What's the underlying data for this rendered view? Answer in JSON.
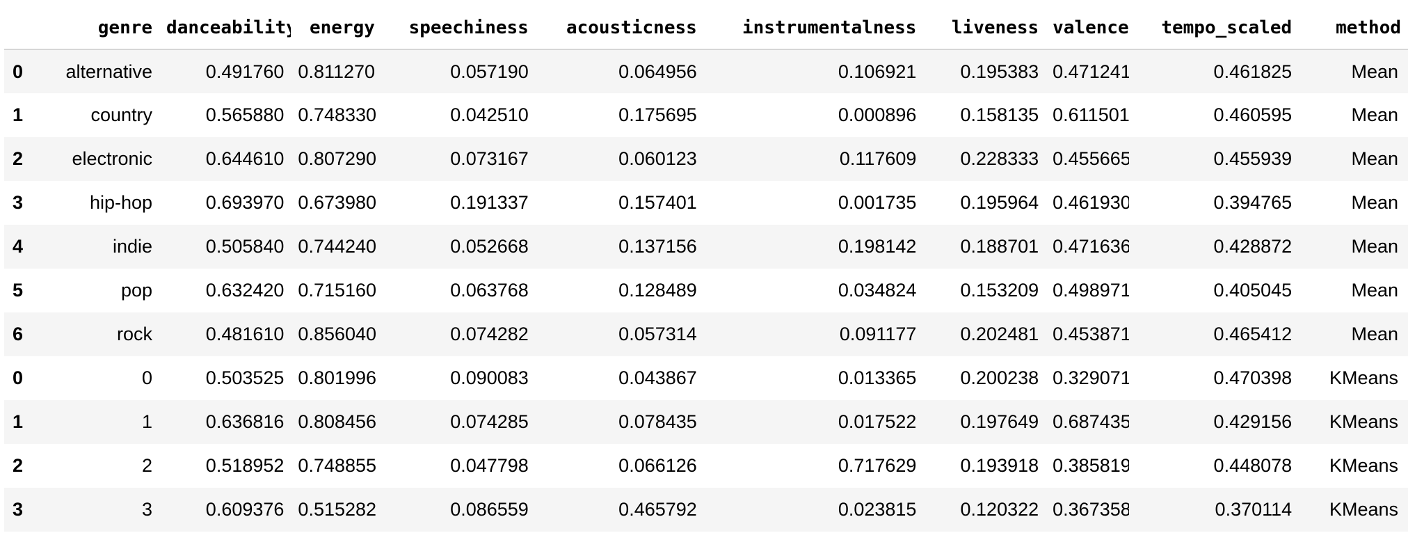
{
  "table": {
    "index_header": "",
    "columns": [
      "genre",
      "danceability",
      "energy",
      "speechiness",
      "acousticness",
      "instrumentalness",
      "liveness",
      "valence",
      "tempo_scaled",
      "method"
    ],
    "rows": [
      {
        "index": "0",
        "cells": [
          "alternative",
          "0.491760",
          "0.811270",
          "0.057190",
          "0.064956",
          "0.106921",
          "0.195383",
          "0.471241",
          "0.461825",
          "Mean"
        ]
      },
      {
        "index": "1",
        "cells": [
          "country",
          "0.565880",
          "0.748330",
          "0.042510",
          "0.175695",
          "0.000896",
          "0.158135",
          "0.611501",
          "0.460595",
          "Mean"
        ]
      },
      {
        "index": "2",
        "cells": [
          "electronic",
          "0.644610",
          "0.807290",
          "0.073167",
          "0.060123",
          "0.117609",
          "0.228333",
          "0.455665",
          "0.455939",
          "Mean"
        ]
      },
      {
        "index": "3",
        "cells": [
          "hip-hop",
          "0.693970",
          "0.673980",
          "0.191337",
          "0.157401",
          "0.001735",
          "0.195964",
          "0.461930",
          "0.394765",
          "Mean"
        ]
      },
      {
        "index": "4",
        "cells": [
          "indie",
          "0.505840",
          "0.744240",
          "0.052668",
          "0.137156",
          "0.198142",
          "0.188701",
          "0.471636",
          "0.428872",
          "Mean"
        ]
      },
      {
        "index": "5",
        "cells": [
          "pop",
          "0.632420",
          "0.715160",
          "0.063768",
          "0.128489",
          "0.034824",
          "0.153209",
          "0.498971",
          "0.405045",
          "Mean"
        ]
      },
      {
        "index": "6",
        "cells": [
          "rock",
          "0.481610",
          "0.856040",
          "0.074282",
          "0.057314",
          "0.091177",
          "0.202481",
          "0.453871",
          "0.465412",
          "Mean"
        ]
      },
      {
        "index": "0",
        "cells": [
          "0",
          "0.503525",
          "0.801996",
          "0.090083",
          "0.043867",
          "0.013365",
          "0.200238",
          "0.329071",
          "0.470398",
          "KMeans"
        ]
      },
      {
        "index": "1",
        "cells": [
          "1",
          "0.636816",
          "0.808456",
          "0.074285",
          "0.078435",
          "0.017522",
          "0.197649",
          "0.687435",
          "0.429156",
          "KMeans"
        ]
      },
      {
        "index": "2",
        "cells": [
          "2",
          "0.518952",
          "0.748855",
          "0.047798",
          "0.066126",
          "0.717629",
          "0.193918",
          "0.385819",
          "0.448078",
          "KMeans"
        ]
      },
      {
        "index": "3",
        "cells": [
          "3",
          "0.609376",
          "0.515282",
          "0.086559",
          "0.465792",
          "0.023815",
          "0.120322",
          "0.367358",
          "0.370114",
          "KMeans"
        ]
      }
    ]
  }
}
